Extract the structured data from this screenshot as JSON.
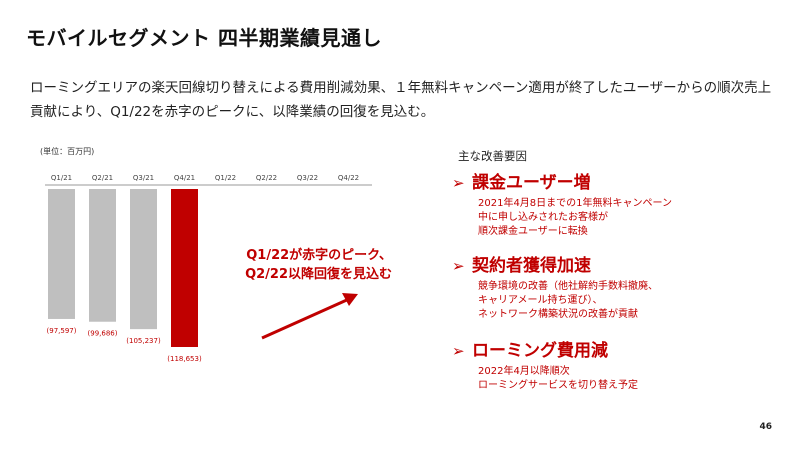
{
  "title": "モバイルセグメント 四半期業績見通し",
  "lead": "ローミングエリアの楽天回線切り替えによる費用削減効果、１年無料キャンペーン適用が終了したユーザーからの順次売上貢献により、Q1/22を赤字のピークに、以降業績の回復を見込む。",
  "unit_label": "(単位：百万円)",
  "callout": {
    "line1": "Q1/22が赤字のピーク、",
    "line2": "Q2/22以降回復を見込む"
  },
  "factors_title": "主な改善要因",
  "factors": [
    {
      "arrow": "➢",
      "heading": "課金ユーザー増",
      "lines": [
        "2021年4月8日までの1年無料キャンペーン",
        "中に申し込みされたお客様が",
        "順次課金ユーザーに転換"
      ]
    },
    {
      "arrow": "➢",
      "heading": "契約者獲得加速",
      "lines": [
        "競争環境の改善（他社解約手数料撤廃、",
        "キャリアメール持ち運び）、",
        "ネットワーク構築状況の改善が貢献"
      ]
    },
    {
      "arrow": "➢",
      "heading": "ローミング費用減",
      "lines": [
        "2022年4月以降順次",
        "ローミングサービスを切り替え予定"
      ]
    }
  ],
  "page_number": "46",
  "chart_data": {
    "type": "bar",
    "categories": [
      "Q1/21",
      "Q2/21",
      "Q3/21",
      "Q4/21",
      "Q1/22",
      "Q2/22",
      "Q3/22",
      "Q4/22"
    ],
    "values": [
      -97597,
      -99686,
      -105237,
      -118653,
      null,
      null,
      null,
      null
    ],
    "data_labels": [
      "(97,597)",
      "(99,686)",
      "(105,237)",
      "(118,653)",
      "",
      "",
      "",
      ""
    ],
    "highlight_index": 3,
    "colors": {
      "bar": "#bfbfbf",
      "highlight": "#c00000",
      "label": "#c00000",
      "arrow": "#c00000"
    },
    "ylim": [
      -118653,
      0
    ]
  }
}
